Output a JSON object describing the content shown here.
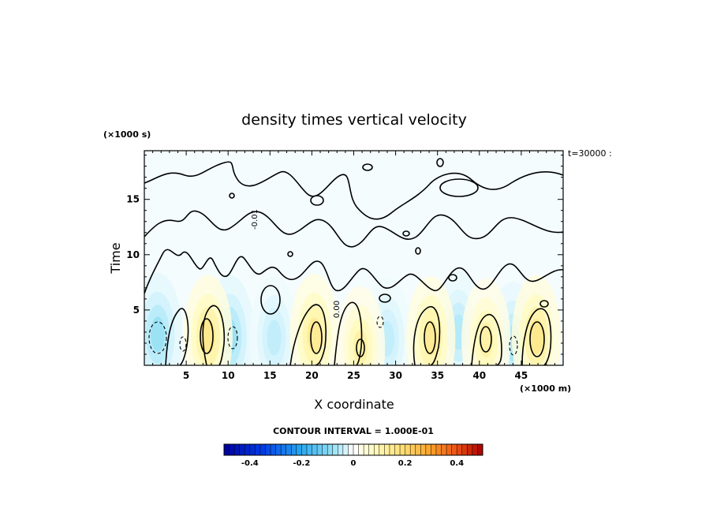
{
  "chart_data": {
    "type": "heatmap",
    "title": "density times vertical velocity",
    "xlabel": "X coordinate",
    "ylabel": "Time",
    "x_unit": "(×1000 m)",
    "y_unit": "(×1000 s)",
    "x_ticks": [
      "5",
      "10",
      "15",
      "20",
      "25",
      "30",
      "35",
      "40",
      "45"
    ],
    "y_ticks": [
      "5",
      "10",
      "15"
    ],
    "xlim": [
      0,
      50
    ],
    "ylim": [
      0,
      19.4
    ],
    "annotation": "t=30000 :",
    "contour_interval_label": "CONTOUR INTERVAL = 1.000E-01",
    "colorbar": {
      "range": [
        -0.5,
        0.5
      ],
      "steps": 50,
      "tick_labels": [
        "-0.4",
        "-0.2",
        "0",
        "0.2",
        "0.4"
      ],
      "tick_values": [
        -0.4,
        -0.2,
        0,
        0.2,
        0.4
      ]
    },
    "contour_labels": [
      "0.00",
      "-0.01"
    ],
    "positive_cells": [
      {
        "x": 7.6,
        "t": 2.6,
        "peak": 0.16
      },
      {
        "x": 20.3,
        "t": 2.7,
        "peak": 0.15
      },
      {
        "x": 25.8,
        "t": 1.6,
        "peak": 0.12
      },
      {
        "x": 34.2,
        "t": 2.5,
        "peak": 0.15
      },
      {
        "x": 40.8,
        "t": 2.3,
        "peak": 0.12
      },
      {
        "x": 46.8,
        "t": 2.6,
        "peak": 0.16
      }
    ],
    "negative_cells": [
      {
        "x": 1.6,
        "t": 2.8,
        "peak": -0.08
      },
      {
        "x": 10.2,
        "t": 2.6,
        "peak": -0.08
      },
      {
        "x": 15.5,
        "t": 2.5,
        "peak": -0.05
      },
      {
        "x": 29.0,
        "t": 2.4,
        "peak": -0.05
      },
      {
        "x": 37.5,
        "t": 3.0,
        "peak": -0.06
      },
      {
        "x": 44.0,
        "t": 2.0,
        "peak": -0.07
      }
    ]
  }
}
